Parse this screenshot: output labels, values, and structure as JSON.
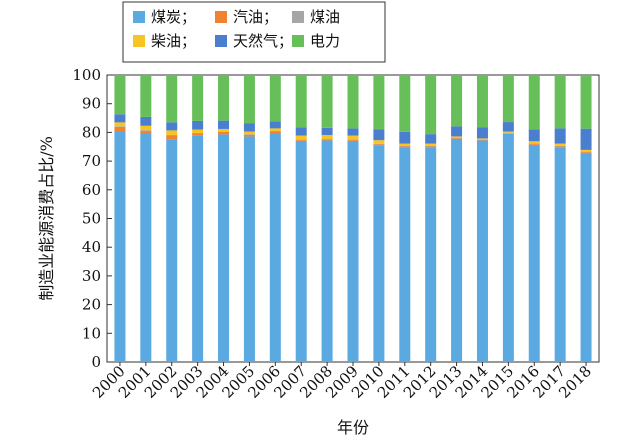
{
  "chart_data": {
    "type": "bar",
    "stacked": true,
    "title": "",
    "xlabel": "年份",
    "ylabel": "制造业能源消费占比/%",
    "ylim": [
      0,
      100
    ],
    "yticks": [
      0,
      10,
      20,
      30,
      40,
      50,
      60,
      70,
      80,
      90,
      100
    ],
    "legend_position": "top",
    "categories": [
      "2000",
      "2001",
      "2002",
      "2003",
      "2004",
      "2005",
      "2006",
      "2007",
      "2008",
      "2009",
      "2010",
      "2011",
      "2012",
      "2013",
      "2014",
      "2015",
      "2016",
      "2017",
      "2018"
    ],
    "series": [
      {
        "name": "煤炭；",
        "color": "#5aa9e0",
        "values": [
          80.3,
          79.8,
          77.6,
          78.8,
          79.3,
          78.6,
          79.8,
          77.0,
          77.2,
          77.0,
          75.5,
          74.8,
          74.8,
          77.8,
          77.2,
          79.5,
          75.6,
          74.8,
          72.8
        ]
      },
      {
        "name": "汽油；",
        "color": "#f08233",
        "values": [
          1.6,
          0.8,
          1.3,
          0.8,
          0.9,
          0.5,
          0.5,
          0.3,
          0.3,
          0.3,
          0.3,
          0.3,
          0.3,
          0.3,
          0.2,
          0.2,
          0.3,
          0.3,
          0.3
        ]
      },
      {
        "name": "煤油",
        "color": "#a6a6a6",
        "values": [
          0.2,
          0.2,
          0.2,
          0.2,
          0.2,
          0.2,
          0.2,
          0.2,
          0.2,
          0.2,
          0.2,
          0.2,
          0.2,
          0.2,
          0.2,
          0.2,
          0.2,
          0.2,
          0.2
        ]
      },
      {
        "name": "柴油；",
        "color": "#f6c522",
        "values": [
          1.4,
          1.5,
          1.6,
          1.2,
          0.8,
          1.0,
          0.9,
          1.4,
          1.4,
          1.4,
          1.3,
          0.8,
          0.8,
          0.3,
          0.3,
          0.4,
          0.8,
          0.8,
          0.6
        ]
      },
      {
        "name": "天然气；",
        "color": "#4a7fd0",
        "values": [
          2.8,
          3.1,
          2.8,
          3.0,
          2.9,
          2.8,
          2.5,
          2.9,
          2.5,
          2.5,
          3.7,
          4.1,
          3.3,
          3.5,
          3.8,
          3.3,
          4.2,
          5.3,
          7.4
        ]
      },
      {
        "name": "电力",
        "color": "#67bf5a",
        "values": [
          13.7,
          14.6,
          16.5,
          16.0,
          15.9,
          16.9,
          16.1,
          18.2,
          18.4,
          18.6,
          19.0,
          19.8,
          20.6,
          17.9,
          18.3,
          16.4,
          18.9,
          18.6,
          18.7
        ]
      }
    ]
  }
}
